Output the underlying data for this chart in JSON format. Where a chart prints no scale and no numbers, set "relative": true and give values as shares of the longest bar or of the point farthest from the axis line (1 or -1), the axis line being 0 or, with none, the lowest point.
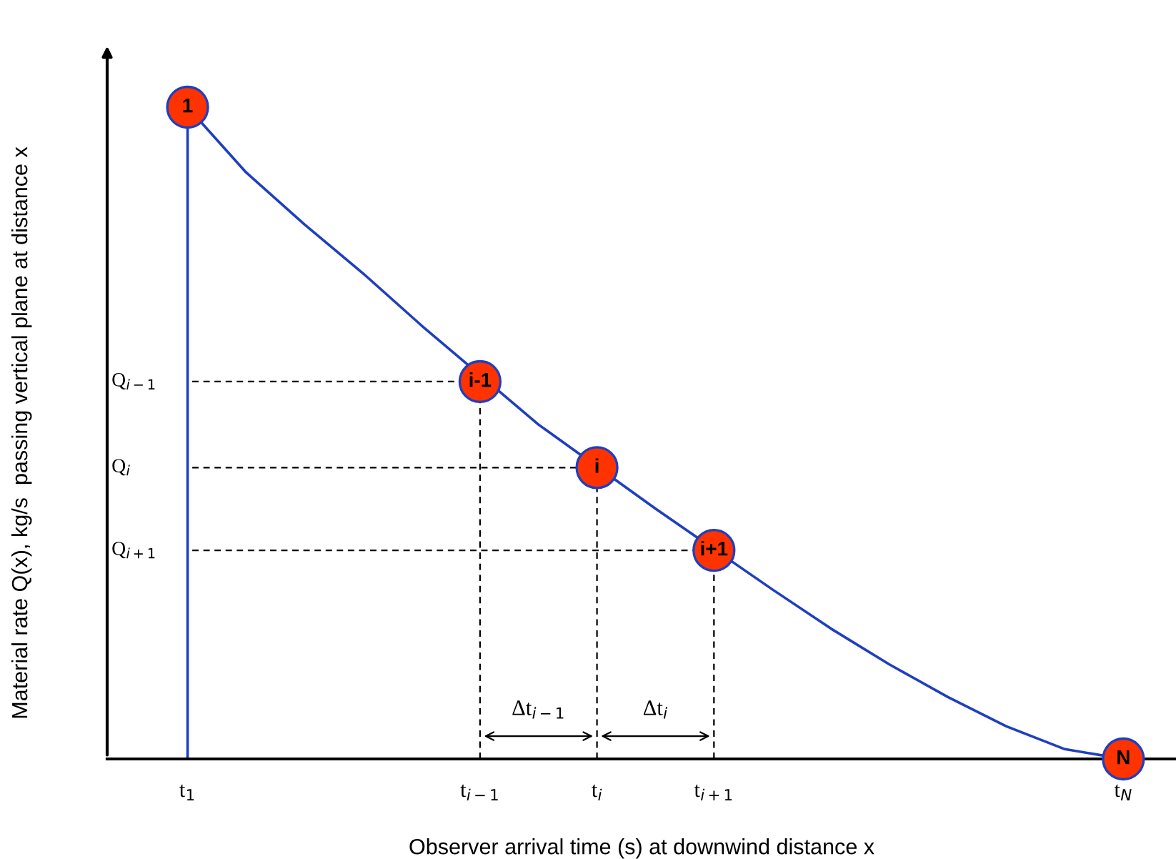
{
  "chart_data": {
    "type": "line",
    "relative": true,
    "xlabel": "Observer arrival time (s) at downwind distance x",
    "ylabel": "Material rate Q(x), kg/s  passing vertical plane at distance x",
    "categories": [
      "t$_{1}$",
      null,
      null,
      null,
      null,
      "t$_{i−1}$",
      null,
      "t$_{i}$",
      null,
      "t$_{i+1}$",
      null,
      null,
      null,
      null,
      null,
      null,
      "t$_{N}$"
    ],
    "series": [
      {
        "color": "#1f3fbf",
        "values": [
          1,
          0.9,
          0.82,
          0.745,
          0.665,
          null,
          0.513,
          null,
          0.384,
          null,
          0.26,
          0.2,
          0.145,
          0.095,
          0.05,
          0.015,
          0
        ]
      },
      {
        "type": "scatter",
        "color": "#ff3300",
        "marker": "circle",
        "values": [
          1,
          null,
          null,
          null,
          null,
          0.579,
          null,
          0.447,
          null,
          0.32,
          null,
          null,
          null,
          null,
          null,
          null,
          0
        ]
      }
    ],
    "annotations": [
      "1",
      "i-1",
      "i",
      "i+1",
      "N",
      "Q$_{i−1}$",
      "Q$_{i}$",
      "Q$_{i+1}$",
      "Δt$_{i−1}$",
      "Δt$_{i}$"
    ]
  }
}
